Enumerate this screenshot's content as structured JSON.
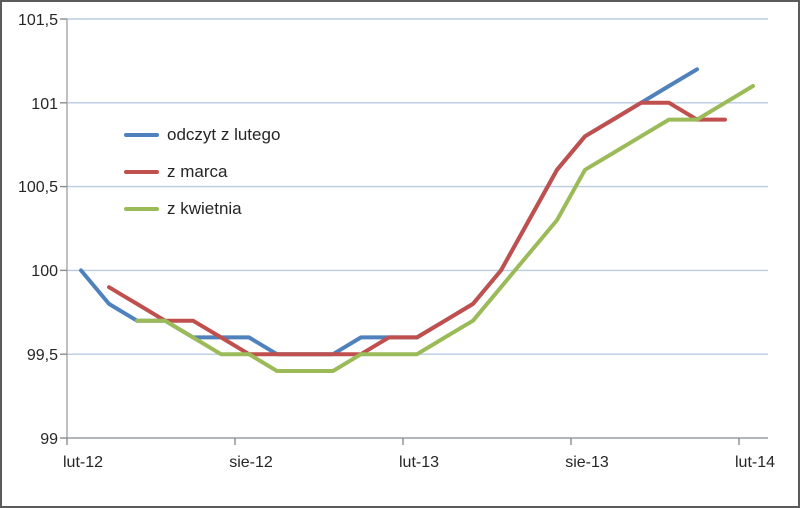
{
  "chart_data": {
    "type": "line",
    "title": "",
    "xlabel": "",
    "ylabel": "",
    "ylim": [
      99,
      101.5
    ],
    "ytick_step": 0.5,
    "y_tick_labels": [
      "101,5",
      "101",
      "100,5",
      "100",
      "99,5",
      "99"
    ],
    "x_tick_labels": [
      "lut-12",
      "sie-12",
      "lut-13",
      "sie-13",
      "lut-14"
    ],
    "x_tick_category_indexes": [
      0,
      6,
      12,
      18,
      24
    ],
    "x_total_categories": 25,
    "grid": true,
    "legend_position": "inside-top-left",
    "series": [
      {
        "name": "odczyt z lutego",
        "color": "#4F81BD",
        "start_index": 0,
        "values": [
          100.0,
          99.8,
          99.7,
          99.7,
          99.6,
          99.6,
          99.6,
          99.5,
          99.5,
          99.5,
          99.6,
          99.6,
          99.6,
          99.7,
          99.8,
          100.0,
          100.3,
          100.6,
          100.8,
          100.9,
          101.0,
          101.1,
          101.2
        ]
      },
      {
        "name": "z marca",
        "color": "#C0504D",
        "start_index": 1,
        "values": [
          99.9,
          99.8,
          99.7,
          99.7,
          99.6,
          99.5,
          99.5,
          99.5,
          99.5,
          99.5,
          99.6,
          99.6,
          99.7,
          99.8,
          100.0,
          100.3,
          100.6,
          100.8,
          100.9,
          101.0,
          101.0,
          100.9,
          100.9
        ]
      },
      {
        "name": "z kwietnia",
        "color": "#9BBB59",
        "start_index": 2,
        "values": [
          99.7,
          99.7,
          99.6,
          99.5,
          99.5,
          99.4,
          99.4,
          99.4,
          99.5,
          99.5,
          99.5,
          99.6,
          99.7,
          99.9,
          100.1,
          100.3,
          100.6,
          100.7,
          100.8,
          100.9,
          100.9,
          101.0,
          101.1
        ]
      }
    ],
    "style": {
      "gridline_color": "#b8cbe2",
      "axis_color": "#a6a6a6",
      "tick_color": "#8c8c8c",
      "line_width": 4
    }
  }
}
